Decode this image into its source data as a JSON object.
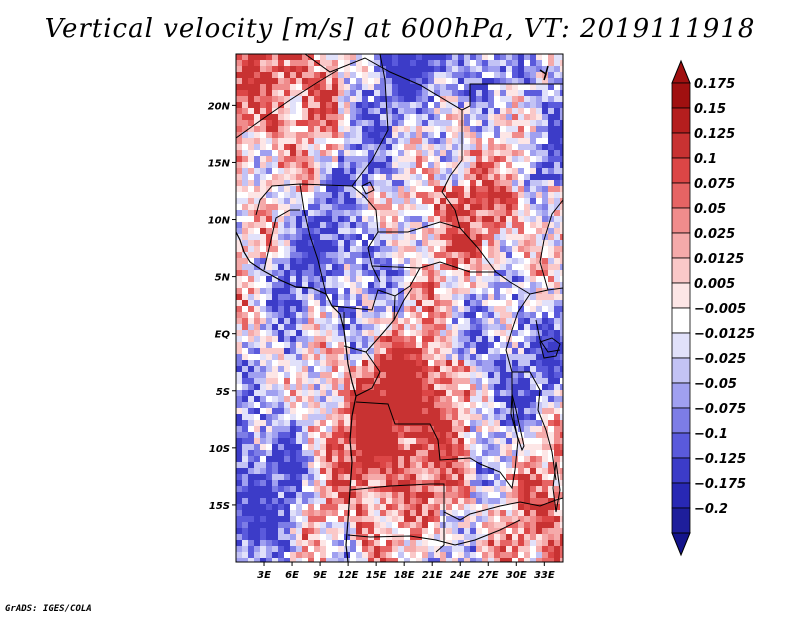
{
  "title": "Vertical velocity [m/s] at 600hPa, VT: 2019111918",
  "footer": "GrADS: IGES/COLA",
  "map": {
    "lon_range": [
      0,
      35
    ],
    "lat_range": [
      -20,
      24.5
    ],
    "lat_ticks": [
      {
        "value": 20,
        "label": "20N"
      },
      {
        "value": 15,
        "label": "15N"
      },
      {
        "value": 10,
        "label": "10N"
      },
      {
        "value": 5,
        "label": "5N"
      },
      {
        "value": 0,
        "label": "EQ"
      },
      {
        "value": -5,
        "label": "5S"
      },
      {
        "value": -10,
        "label": "10S"
      },
      {
        "value": -15,
        "label": "15S"
      }
    ],
    "lon_ticks": [
      {
        "value": 3,
        "label": "3E"
      },
      {
        "value": 6,
        "label": "6E"
      },
      {
        "value": 9,
        "label": "9E"
      },
      {
        "value": 12,
        "label": "12E"
      },
      {
        "value": 15,
        "label": "15E"
      },
      {
        "value": 18,
        "label": "18E"
      },
      {
        "value": 21,
        "label": "21E"
      },
      {
        "value": 24,
        "label": "24E"
      },
      {
        "value": 27,
        "label": "27E"
      },
      {
        "value": 30,
        "label": "30E"
      },
      {
        "value": 33,
        "label": "33E"
      }
    ]
  },
  "colorbar": {
    "levels": [
      {
        "label": "0.175",
        "color": "#a01010"
      },
      {
        "label": "0.15",
        "color": "#b41e1e"
      },
      {
        "label": "0.125",
        "color": "#c83232"
      },
      {
        "label": "0.1",
        "color": "#dc4646"
      },
      {
        "label": "0.075",
        "color": "#e66464"
      },
      {
        "label": "0.05",
        "color": "#f08c8c"
      },
      {
        "label": "0.025",
        "color": "#f5aaaa"
      },
      {
        "label": "0.0125",
        "color": "#fac8c8"
      },
      {
        "label": "0.005",
        "color": "#fde6e6"
      },
      {
        "label": "−0.005",
        "color": "#ffffff"
      },
      {
        "label": "−0.0125",
        "color": "#e1e1fa"
      },
      {
        "label": "−0.025",
        "color": "#c3c3f5"
      },
      {
        "label": "−0.05",
        "color": "#a0a0f0"
      },
      {
        "label": "−0.075",
        "color": "#7d7de6"
      },
      {
        "label": "−0.1",
        "color": "#5a5adc"
      },
      {
        "label": "−0.125",
        "color": "#3c3cc8"
      },
      {
        "label": "−0.175",
        "color": "#2828b4"
      },
      {
        "label": "−0.2",
        "color": "#1e1e9b"
      }
    ],
    "top_color": "#a01010",
    "bottom_color": "#14148c"
  }
}
